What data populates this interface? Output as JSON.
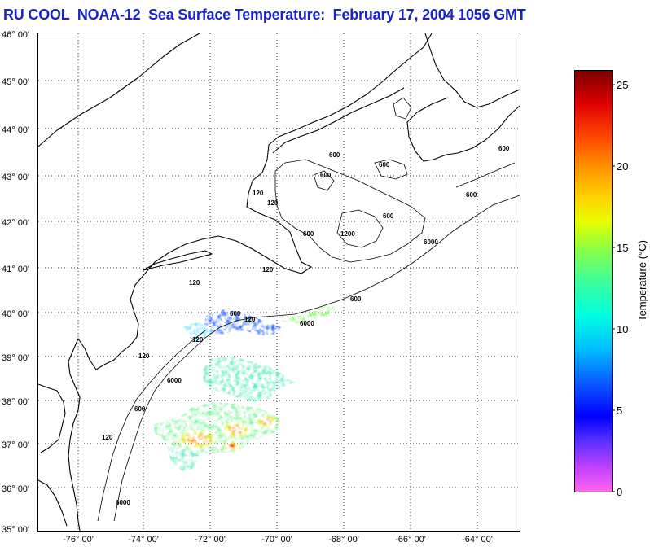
{
  "title": "RU COOL  NOAA-12  Sea Surface Temperature:  February 17, 2004 1056 GMT",
  "latitude_labels": [
    "46° 00'",
    "45° 00'",
    "44° 00'",
    "43° 00'",
    "42° 00'",
    "41° 00'",
    "40° 00'",
    "39° 00'",
    "38° 00'",
    "37° 00'",
    "36° 00'",
    "35° 00'"
  ],
  "longitude_labels": [
    "-76° 00'",
    "-74° 00'",
    "-72° 00'",
    "-70° 00'",
    "-68° 00'",
    "-66° 00'",
    "-64° 00'"
  ],
  "bathymetry_labels": [
    "600",
    "600",
    "600",
    "600",
    "600",
    "600",
    "600",
    "6000",
    "6000",
    "6000",
    "120",
    "120",
    "120",
    "120",
    "120",
    "1200",
    "120",
    "600",
    "600",
    "120",
    "6000",
    "600",
    "120"
  ],
  "colorbar": {
    "label": "Temperature (°C)",
    "ticks": [
      "25",
      "20",
      "15",
      "10",
      "5",
      "0"
    ],
    "range": [
      0,
      26
    ]
  },
  "colors": {
    "title": "#1a24c4",
    "land_outline": "#000000",
    "grid": "#000000"
  }
}
